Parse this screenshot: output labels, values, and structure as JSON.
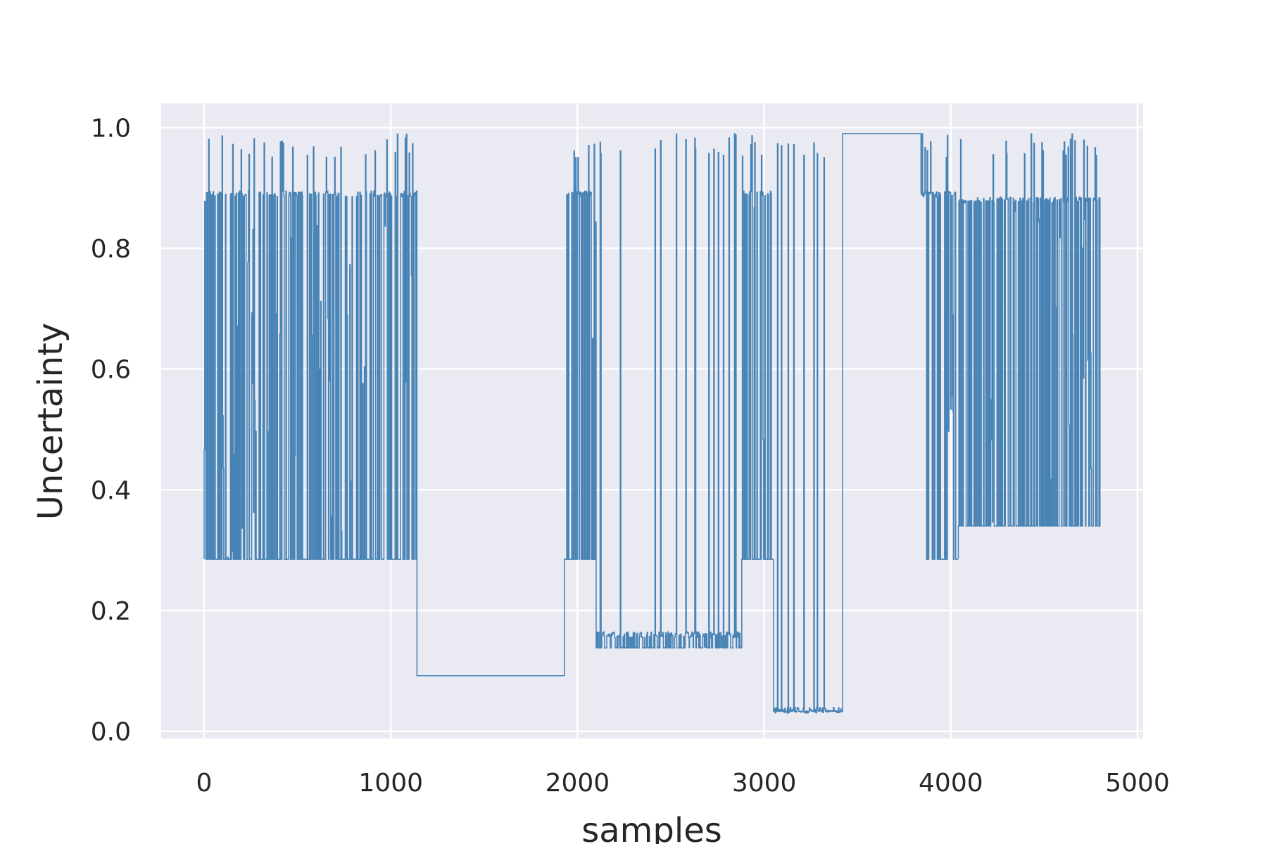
{
  "chart_data": {
    "type": "line",
    "title": "",
    "xlabel": "samples",
    "ylabel": "Uncertainty",
    "xlim": [
      -230,
      5030
    ],
    "ylim": [
      -0.012,
      1.04
    ],
    "xticks": [
      0,
      1000,
      2000,
      3000,
      4000,
      5000
    ],
    "yticks": [
      0.0,
      0.2,
      0.4,
      0.6,
      0.8,
      1.0
    ],
    "xtick_labels": [
      "0",
      "1000",
      "2000",
      "3000",
      "4000",
      "5000"
    ],
    "ytick_labels": [
      "0.0",
      "0.2",
      "0.4",
      "0.6",
      "0.8",
      "1.0"
    ],
    "grid": true,
    "background": "#eaeaf2",
    "grid_color": "#ffffff",
    "line_color": "#4682b4",
    "series": [
      {
        "segments": [
          {
            "x0": 0,
            "x1": 1140,
            "low": 0.285,
            "high": 0.88,
            "peak": 0.99,
            "mid": 0.89,
            "density": 0.55
          },
          {
            "x0": 1140,
            "x1": 1930,
            "flat": 0.092
          },
          {
            "x0": 1930,
            "x1": 2100,
            "low": 0.285,
            "high": 0.89,
            "peak": 0.99,
            "mid": 0.89,
            "density": 0.45
          },
          {
            "x0": 2100,
            "x1": 2880,
            "low": 0.138,
            "high": 0.14,
            "peak": 0.99,
            "mid": 0.16,
            "density": 0.35
          },
          {
            "x0": 2880,
            "x1": 3050,
            "low": 0.285,
            "high": 0.89,
            "peak": 0.99,
            "mid": 0.89,
            "density": 0.55
          },
          {
            "x0": 3050,
            "x1": 3420,
            "low": 0.033,
            "high": 0.035,
            "peak": 0.99,
            "mid": 0.035,
            "density": 0.2
          },
          {
            "x0": 3420,
            "x1": 3840,
            "flat": 0.99
          },
          {
            "x0": 3840,
            "x1": 4040,
            "low": 0.285,
            "high": 0.89,
            "peak": 0.99,
            "mid": 0.89,
            "density": 0.45
          },
          {
            "x0": 4040,
            "x1": 4800,
            "low": 0.34,
            "high": 0.88,
            "peak": 0.99,
            "mid": 0.88,
            "density": 0.45
          }
        ]
      }
    ]
  }
}
